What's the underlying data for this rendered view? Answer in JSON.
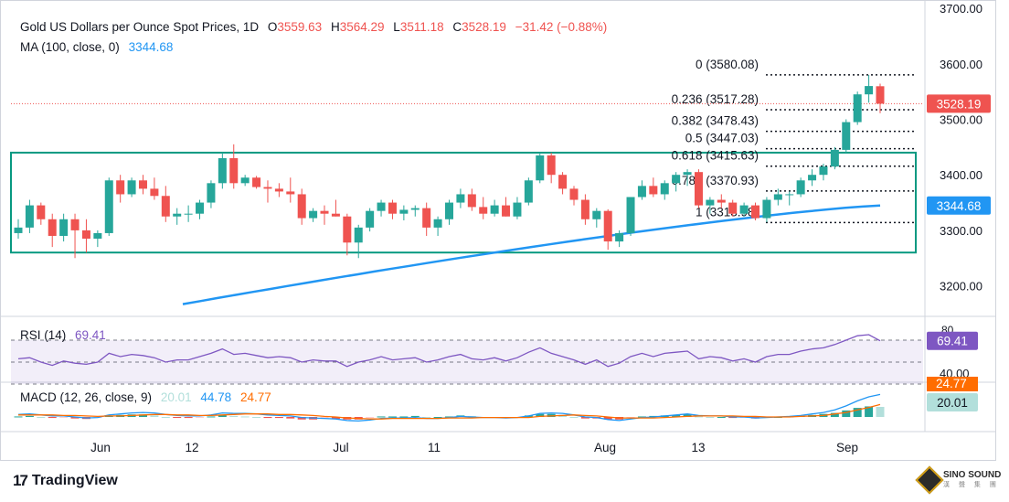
{
  "header": {
    "title": "Gold US Dollars per Ounce Spot Prices, 1D",
    "open_label": "O",
    "open": "3559.63",
    "high_label": "H",
    "high": "3564.29",
    "low_label": "L",
    "low": "3511.18",
    "close_label": "C",
    "close": "3528.19",
    "change": "−31.42 (−0.88%)"
  },
  "ma_legend": {
    "label": "MA (100, close, 0)",
    "value": "3344.68"
  },
  "rsi_legend": {
    "label": "RSI (14)",
    "value": "69.41"
  },
  "macd_legend": {
    "label": "MACD (12, 26, close, 9)",
    "hist": "20.01",
    "macd": "44.78",
    "signal": "24.77"
  },
  "branding": {
    "logo_mark": "17",
    "name": "TradingView"
  },
  "watermark": {
    "line1": "SINO SOUND",
    "line2": "漢 聲 集 團"
  },
  "colors": {
    "up": "#26a69a",
    "down": "#ef5350",
    "ma": "#2196f3",
    "rsi": "#7e57c2",
    "macd": "#2196f3",
    "signal": "#ff6d00",
    "rect": "#089981",
    "fib": "#131722"
  },
  "chart_data": {
    "type": "candlestick",
    "instrument": "Gold US Dollars per Ounce Spot Prices",
    "timeframe": "1D",
    "y_axis": {
      "ticks": [
        "3200.00",
        "3300.00",
        "3400.00",
        "3500.00",
        "3600.00",
        "3700.00"
      ],
      "ylim": [
        3145,
        3715
      ]
    },
    "x_axis": {
      "ticks": [
        "Jun",
        "12",
        "Jul",
        "11",
        "Aug",
        "13",
        "Sep"
      ]
    },
    "price_badges": [
      {
        "value": "3528.19",
        "color": "#ef5350"
      },
      {
        "value": "3344.68",
        "color": "#2196f3"
      }
    ],
    "candles": [
      [
        3295,
        3320,
        3285,
        3305
      ],
      [
        3305,
        3355,
        3295,
        3345
      ],
      [
        3345,
        3350,
        3310,
        3320
      ],
      [
        3320,
        3330,
        3270,
        3290
      ],
      [
        3290,
        3330,
        3280,
        3320
      ],
      [
        3320,
        3330,
        3250,
        3300
      ],
      [
        3300,
        3320,
        3260,
        3285
      ],
      [
        3285,
        3300,
        3270,
        3295
      ],
      [
        3295,
        3395,
        3290,
        3390
      ],
      [
        3390,
        3400,
        3350,
        3365
      ],
      [
        3365,
        3395,
        3360,
        3390
      ],
      [
        3390,
        3400,
        3365,
        3375
      ],
      [
        3375,
        3395,
        3355,
        3362
      ],
      [
        3362,
        3380,
        3315,
        3325
      ],
      [
        3325,
        3340,
        3310,
        3330
      ],
      [
        3330,
        3345,
        3315,
        3330
      ],
      [
        3330,
        3355,
        3320,
        3350
      ],
      [
        3350,
        3390,
        3340,
        3385
      ],
      [
        3385,
        3440,
        3375,
        3430
      ],
      [
        3430,
        3455,
        3375,
        3385
      ],
      [
        3385,
        3400,
        3380,
        3395
      ],
      [
        3395,
        3398,
        3375,
        3378
      ],
      [
        3378,
        3390,
        3350,
        3375
      ],
      [
        3375,
        3385,
        3360,
        3370
      ],
      [
        3370,
        3395,
        3350,
        3365
      ],
      [
        3365,
        3375,
        3310,
        3322
      ],
      [
        3322,
        3340,
        3315,
        3335
      ],
      [
        3335,
        3345,
        3310,
        3330
      ],
      [
        3330,
        3355,
        3325,
        3325
      ],
      [
        3325,
        3330,
        3255,
        3278
      ],
      [
        3278,
        3310,
        3250,
        3305
      ],
      [
        3305,
        3340,
        3298,
        3335
      ],
      [
        3335,
        3355,
        3325,
        3350
      ],
      [
        3350,
        3355,
        3320,
        3330
      ],
      [
        3330,
        3345,
        3318,
        3337
      ],
      [
        3337,
        3345,
        3325,
        3340
      ],
      [
        3340,
        3350,
        3290,
        3305
      ],
      [
        3305,
        3325,
        3290,
        3320
      ],
      [
        3320,
        3355,
        3310,
        3350
      ],
      [
        3350,
        3375,
        3340,
        3365
      ],
      [
        3365,
        3375,
        3335,
        3342
      ],
      [
        3342,
        3360,
        3320,
        3330
      ],
      [
        3330,
        3355,
        3325,
        3345
      ],
      [
        3345,
        3360,
        3325,
        3325
      ],
      [
        3325,
        3360,
        3320,
        3350
      ],
      [
        3350,
        3395,
        3345,
        3390
      ],
      [
        3390,
        3440,
        3385,
        3435
      ],
      [
        3435,
        3440,
        3385,
        3400
      ],
      [
        3400,
        3405,
        3365,
        3375
      ],
      [
        3375,
        3380,
        3345,
        3355
      ],
      [
        3355,
        3365,
        3310,
        3320
      ],
      [
        3320,
        3340,
        3305,
        3335
      ],
      [
        3335,
        3338,
        3265,
        3280
      ],
      [
        3280,
        3300,
        3270,
        3295
      ],
      [
        3295,
        3360,
        3290,
        3360
      ],
      [
        3360,
        3390,
        3355,
        3380
      ],
      [
        3380,
        3395,
        3360,
        3365
      ],
      [
        3365,
        3390,
        3355,
        3385
      ],
      [
        3385,
        3405,
        3370,
        3400
      ],
      [
        3400,
        3410,
        3380,
        3405
      ],
      [
        3405,
        3410,
        3340,
        3345
      ],
      [
        3345,
        3360,
        3330,
        3355
      ],
      [
        3355,
        3365,
        3340,
        3350
      ],
      [
        3350,
        3355,
        3325,
        3330
      ],
      [
        3330,
        3350,
        3325,
        3345
      ],
      [
        3345,
        3350,
        3318,
        3322
      ],
      [
        3322,
        3360,
        3315,
        3355
      ],
      [
        3355,
        3375,
        3345,
        3365
      ],
      [
        3365,
        3370,
        3345,
        3365
      ],
      [
        3365,
        3395,
        3360,
        3390
      ],
      [
        3390,
        3410,
        3380,
        3400
      ],
      [
        3400,
        3420,
        3390,
        3415
      ],
      [
        3415,
        3450,
        3410,
        3445
      ],
      [
        3445,
        3500,
        3440,
        3495
      ],
      [
        3495,
        3550,
        3490,
        3545
      ],
      [
        3545,
        3580,
        3530,
        3560
      ],
      [
        3559.63,
        3564.29,
        3511.18,
        3528.19
      ]
    ],
    "moving_average": {
      "name": "MA (100, close, 0)",
      "start": 3167,
      "end": 3344.68
    },
    "rectangle": {
      "top": 3440,
      "bottom": 3260
    },
    "fibonacci": [
      {
        "level": "0",
        "price": "3580.08"
      },
      {
        "level": "0.236",
        "price": "3517.28"
      },
      {
        "level": "0.382",
        "price": "3478.43"
      },
      {
        "level": "0.5",
        "price": "3447.03"
      },
      {
        "level": "0.618",
        "price": "3415.63"
      },
      {
        "level": "0.786",
        "price": "3370.93"
      },
      {
        "level": "1",
        "price": "3313.98"
      }
    ],
    "rsi": {
      "ticks": [
        "80",
        "40.00"
      ],
      "current": "69.41",
      "values": [
        53,
        54,
        50,
        47,
        51,
        49,
        48,
        50,
        58,
        55,
        57,
        56,
        54,
        50,
        52,
        52,
        55,
        58,
        62,
        57,
        58,
        56,
        54,
        55,
        54,
        50,
        52,
        51,
        51,
        46,
        50,
        52,
        55,
        52,
        53,
        54,
        50,
        52,
        55,
        57,
        53,
        52,
        54,
        51,
        54,
        59,
        63,
        58,
        55,
        52,
        48,
        52,
        46,
        49,
        55,
        58,
        55,
        58,
        59,
        60,
        53,
        55,
        54,
        51,
        53,
        50,
        55,
        57,
        57,
        60,
        62,
        63,
        66,
        70,
        74,
        75,
        69.41
      ]
    },
    "macd": {
      "hist_current": "20.01",
      "macd_current": "44.78",
      "signal_current": "24.77",
      "macd_values": [
        5,
        6,
        4,
        2,
        2,
        0,
        -2,
        -1,
        4,
        6,
        8,
        9,
        8,
        5,
        3,
        2,
        2,
        4,
        8,
        7,
        7,
        6,
        4,
        3,
        2,
        -1,
        -2,
        -3,
        -4,
        -7,
        -8,
        -6,
        -3,
        -2,
        -2,
        -1,
        -3,
        -3,
        -1,
        1,
        0,
        -1,
        -1,
        -2,
        -1,
        2,
        7,
        8,
        7,
        4,
        0,
        -1,
        -5,
        -7,
        -4,
        -1,
        0,
        2,
        4,
        6,
        3,
        2,
        2,
        0,
        0,
        -2,
        -1,
        0,
        1,
        3,
        6,
        9,
        14,
        22,
        32,
        40,
        44.78
      ],
      "signal_values": [
        4,
        4,
        4,
        4,
        3,
        3,
        2,
        1,
        2,
        2,
        3,
        4,
        5,
        5,
        4,
        4,
        3,
        3,
        4,
        5,
        6,
        6,
        6,
        5,
        5,
        4,
        3,
        1,
        0,
        -2,
        -3,
        -4,
        -4,
        -3,
        -3,
        -3,
        -3,
        -3,
        -2,
        -2,
        -2,
        -1,
        -1,
        -1,
        -1,
        -1,
        1,
        2,
        3,
        4,
        3,
        2,
        0,
        -2,
        -2,
        -2,
        -2,
        -1,
        0,
        1,
        2,
        2,
        2,
        2,
        1,
        1,
        0,
        0,
        0,
        1,
        2,
        3,
        6,
        9,
        14,
        19,
        24.77
      ]
    }
  }
}
